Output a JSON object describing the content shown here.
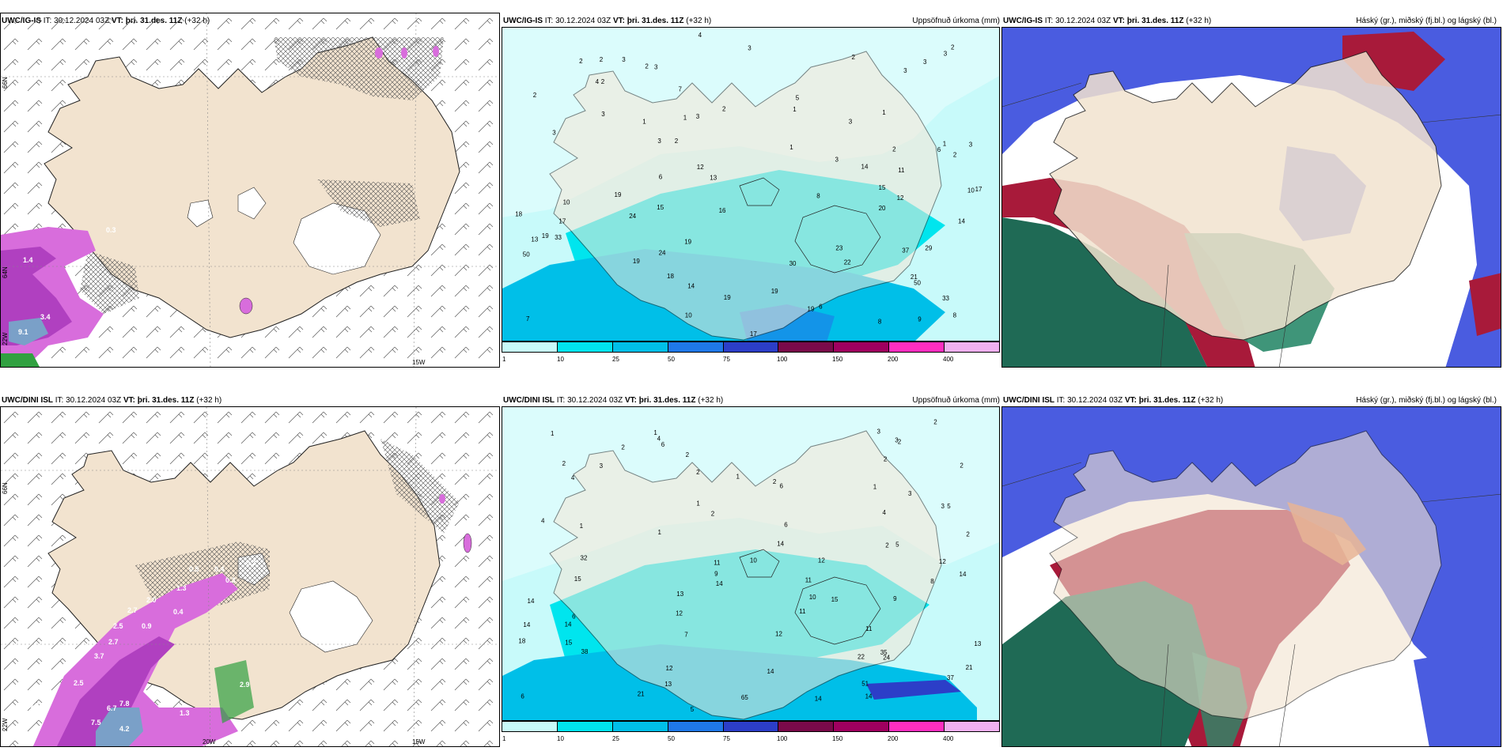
{
  "rows": [
    {
      "model": "UWC/IG-IS",
      "it_label": "IT:",
      "it_value": "30.12.2024 03Z",
      "vt_label": "VT:",
      "vt_value": "þri. 31.des. 11Z",
      "lead": "(+32 h)"
    },
    {
      "model": "UWC/DINI ISL",
      "it_label": "IT:",
      "it_value": "30.12.2024 03Z",
      "vt_label": "VT:",
      "vt_value": "þri. 31.des. 11Z",
      "lead": "(+32 h)"
    }
  ],
  "panel_titles": {
    "precip": "Uppsöfnuð úrkoma (mm)",
    "cloud": "Háský (gr.), miðský (fj.bl.) og lágský (bl.)"
  },
  "precip_colorbar": {
    "ticks": [
      "1",
      "10",
      "25",
      "50",
      "75",
      "100",
      "150",
      "200",
      "400"
    ],
    "colors": [
      "#c8fafa",
      "#00e5ee",
      "#00bfe8",
      "#1f78e8",
      "#2c3ec8",
      "#7a0a4a",
      "#a0005f",
      "#ff2ec0",
      "#f0b0f0"
    ]
  },
  "axis_labels": {
    "lat66": "66N",
    "lat64": "64N",
    "lon15": "15W",
    "lon20": "20W",
    "lon22": "22W"
  },
  "top_left_values": [
    "0.3",
    "1.4",
    "3.4",
    "9.1"
  ],
  "bottom_left_values": [
    "0.5",
    "0.4",
    "0.3",
    "0.2",
    "1.3",
    "2.0",
    "2.7",
    "2.5",
    "0.9",
    "0.4",
    "2.7",
    "3.7",
    "2.5",
    "7.8",
    "6.7",
    "0.4",
    "7.5",
    "4.2",
    "2.9",
    "1.3"
  ],
  "top_precip_values": [
    "3",
    "4",
    "2",
    "3",
    "3",
    "2",
    "2",
    "2",
    "2",
    "3",
    "3",
    "3",
    "2",
    "7",
    "5",
    "4",
    "2",
    "1",
    "1",
    "1",
    "2",
    "1",
    "3",
    "3",
    "3",
    "3",
    "1",
    "2",
    "1",
    "3",
    "3",
    "2",
    "3",
    "6",
    "6",
    "12",
    "2",
    "11",
    "13",
    "14",
    "19",
    "10",
    "8",
    "12",
    "15",
    "17",
    "10",
    "20",
    "17",
    "18",
    "16",
    "15",
    "24",
    "33",
    "14",
    "13",
    "19",
    "19",
    "22",
    "23",
    "29",
    "30",
    "24",
    "37",
    "50",
    "19",
    "19",
    "18",
    "50",
    "14",
    "21",
    "19",
    "19",
    "33",
    "10",
    "6",
    "9",
    "8",
    "8",
    "7",
    "17"
  ],
  "bottom_precip_values": [
    "3",
    "4",
    "2",
    "1",
    "2",
    "1",
    "2",
    "3",
    "2",
    "6",
    "2",
    "2",
    "1",
    "2",
    "2",
    "3",
    "3",
    "4",
    "1",
    "1",
    "2",
    "6",
    "5",
    "2",
    "3",
    "4",
    "4",
    "1",
    "1",
    "2",
    "6",
    "5",
    "2",
    "14",
    "12",
    "12",
    "11",
    "32",
    "14",
    "10",
    "11",
    "14",
    "15",
    "9",
    "15",
    "10",
    "8",
    "14",
    "13",
    "12",
    "9",
    "11",
    "6",
    "7",
    "11",
    "12",
    "14",
    "14",
    "13",
    "15",
    "18",
    "22",
    "21",
    "24",
    "38",
    "37",
    "35",
    "14",
    "13",
    "12",
    "21",
    "65",
    "51",
    "14",
    "14",
    "5",
    "6"
  ]
}
